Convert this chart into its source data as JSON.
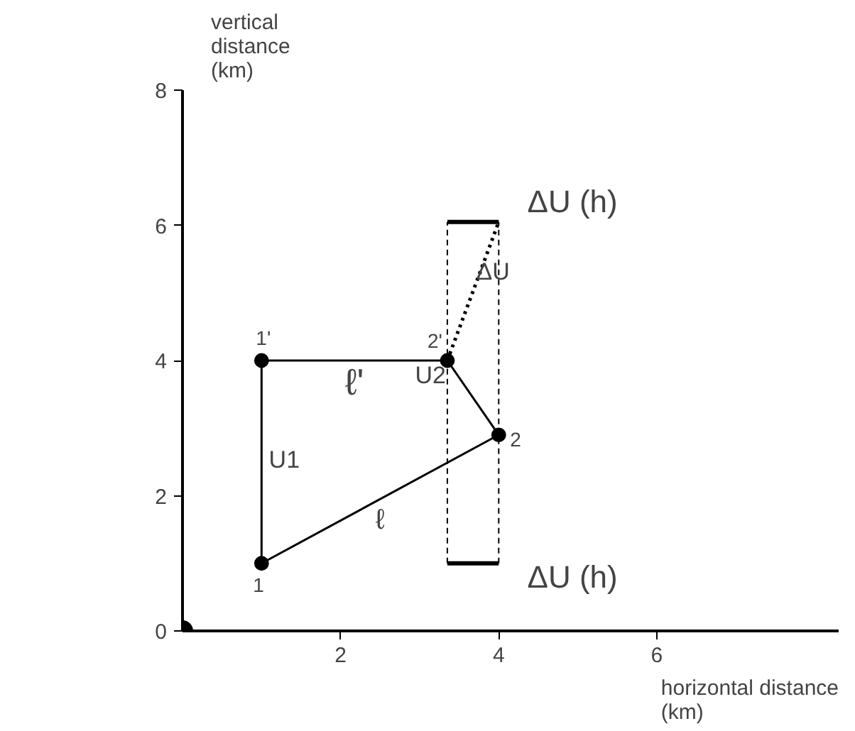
{
  "chart_data": {
    "type": "line",
    "xlabel": "horizontal distance (km)",
    "ylabel": "vertical distance (km)",
    "xlim": [
      0,
      8.3
    ],
    "ylim": [
      0,
      8
    ],
    "xticks": [
      2,
      4,
      6
    ],
    "yticks": [
      0,
      2,
      4,
      6,
      8
    ],
    "annotations": [
      {
        "text": "1",
        "x": 1,
        "y": 1
      },
      {
        "text": "1'",
        "x": 1,
        "y": 4
      },
      {
        "text": "2",
        "x": 4,
        "y": 2.9
      },
      {
        "text": "2'",
        "x": 3.35,
        "y": 4
      }
    ],
    "series": [
      {
        "name": "ℓ",
        "color": "#000000",
        "x": [
          1,
          4
        ],
        "values": [
          1,
          2.9
        ]
      },
      {
        "name": "ℓ'",
        "color": "#000000",
        "x": [
          1,
          3.35
        ],
        "values": [
          4,
          4
        ]
      },
      {
        "name": "U1",
        "color": "#000000",
        "x": [
          1,
          1
        ],
        "values": [
          1,
          4
        ]
      },
      {
        "name": "U2",
        "color": "#000000",
        "x": [
          4,
          3.35
        ],
        "values": [
          2.9,
          4
        ]
      },
      {
        "name": "ΔU",
        "color": "#000000",
        "x": [
          3.35,
          4
        ],
        "values": [
          4,
          6.05
        ],
        "line_style": "dotted"
      },
      {
        "color": "#000000",
        "x": [
          3.35,
          3.35
        ],
        "values": [
          1,
          6.05
        ],
        "line_style": "dashed"
      },
      {
        "color": "#000000",
        "x": [
          4,
          4
        ],
        "values": [
          1,
          6.05
        ],
        "line_style": "dashed"
      },
      {
        "name": "ΔU (h)",
        "color": "#000000",
        "x": [
          3.35,
          4
        ],
        "values": [
          6.05,
          6.05
        ]
      },
      {
        "name": "ΔU (h)",
        "color": "#000000",
        "x": [
          3.35,
          4
        ],
        "values": [
          1,
          1
        ]
      },
      {
        "type": "bubble",
        "color": "#000000",
        "x": [
          0,
          1,
          1,
          4,
          3.35
        ],
        "values": [
          0,
          1,
          4,
          2.9,
          4
        ],
        "sizes": [
          1,
          0.45,
          0.45,
          0.45,
          0.45
        ]
      }
    ]
  }
}
